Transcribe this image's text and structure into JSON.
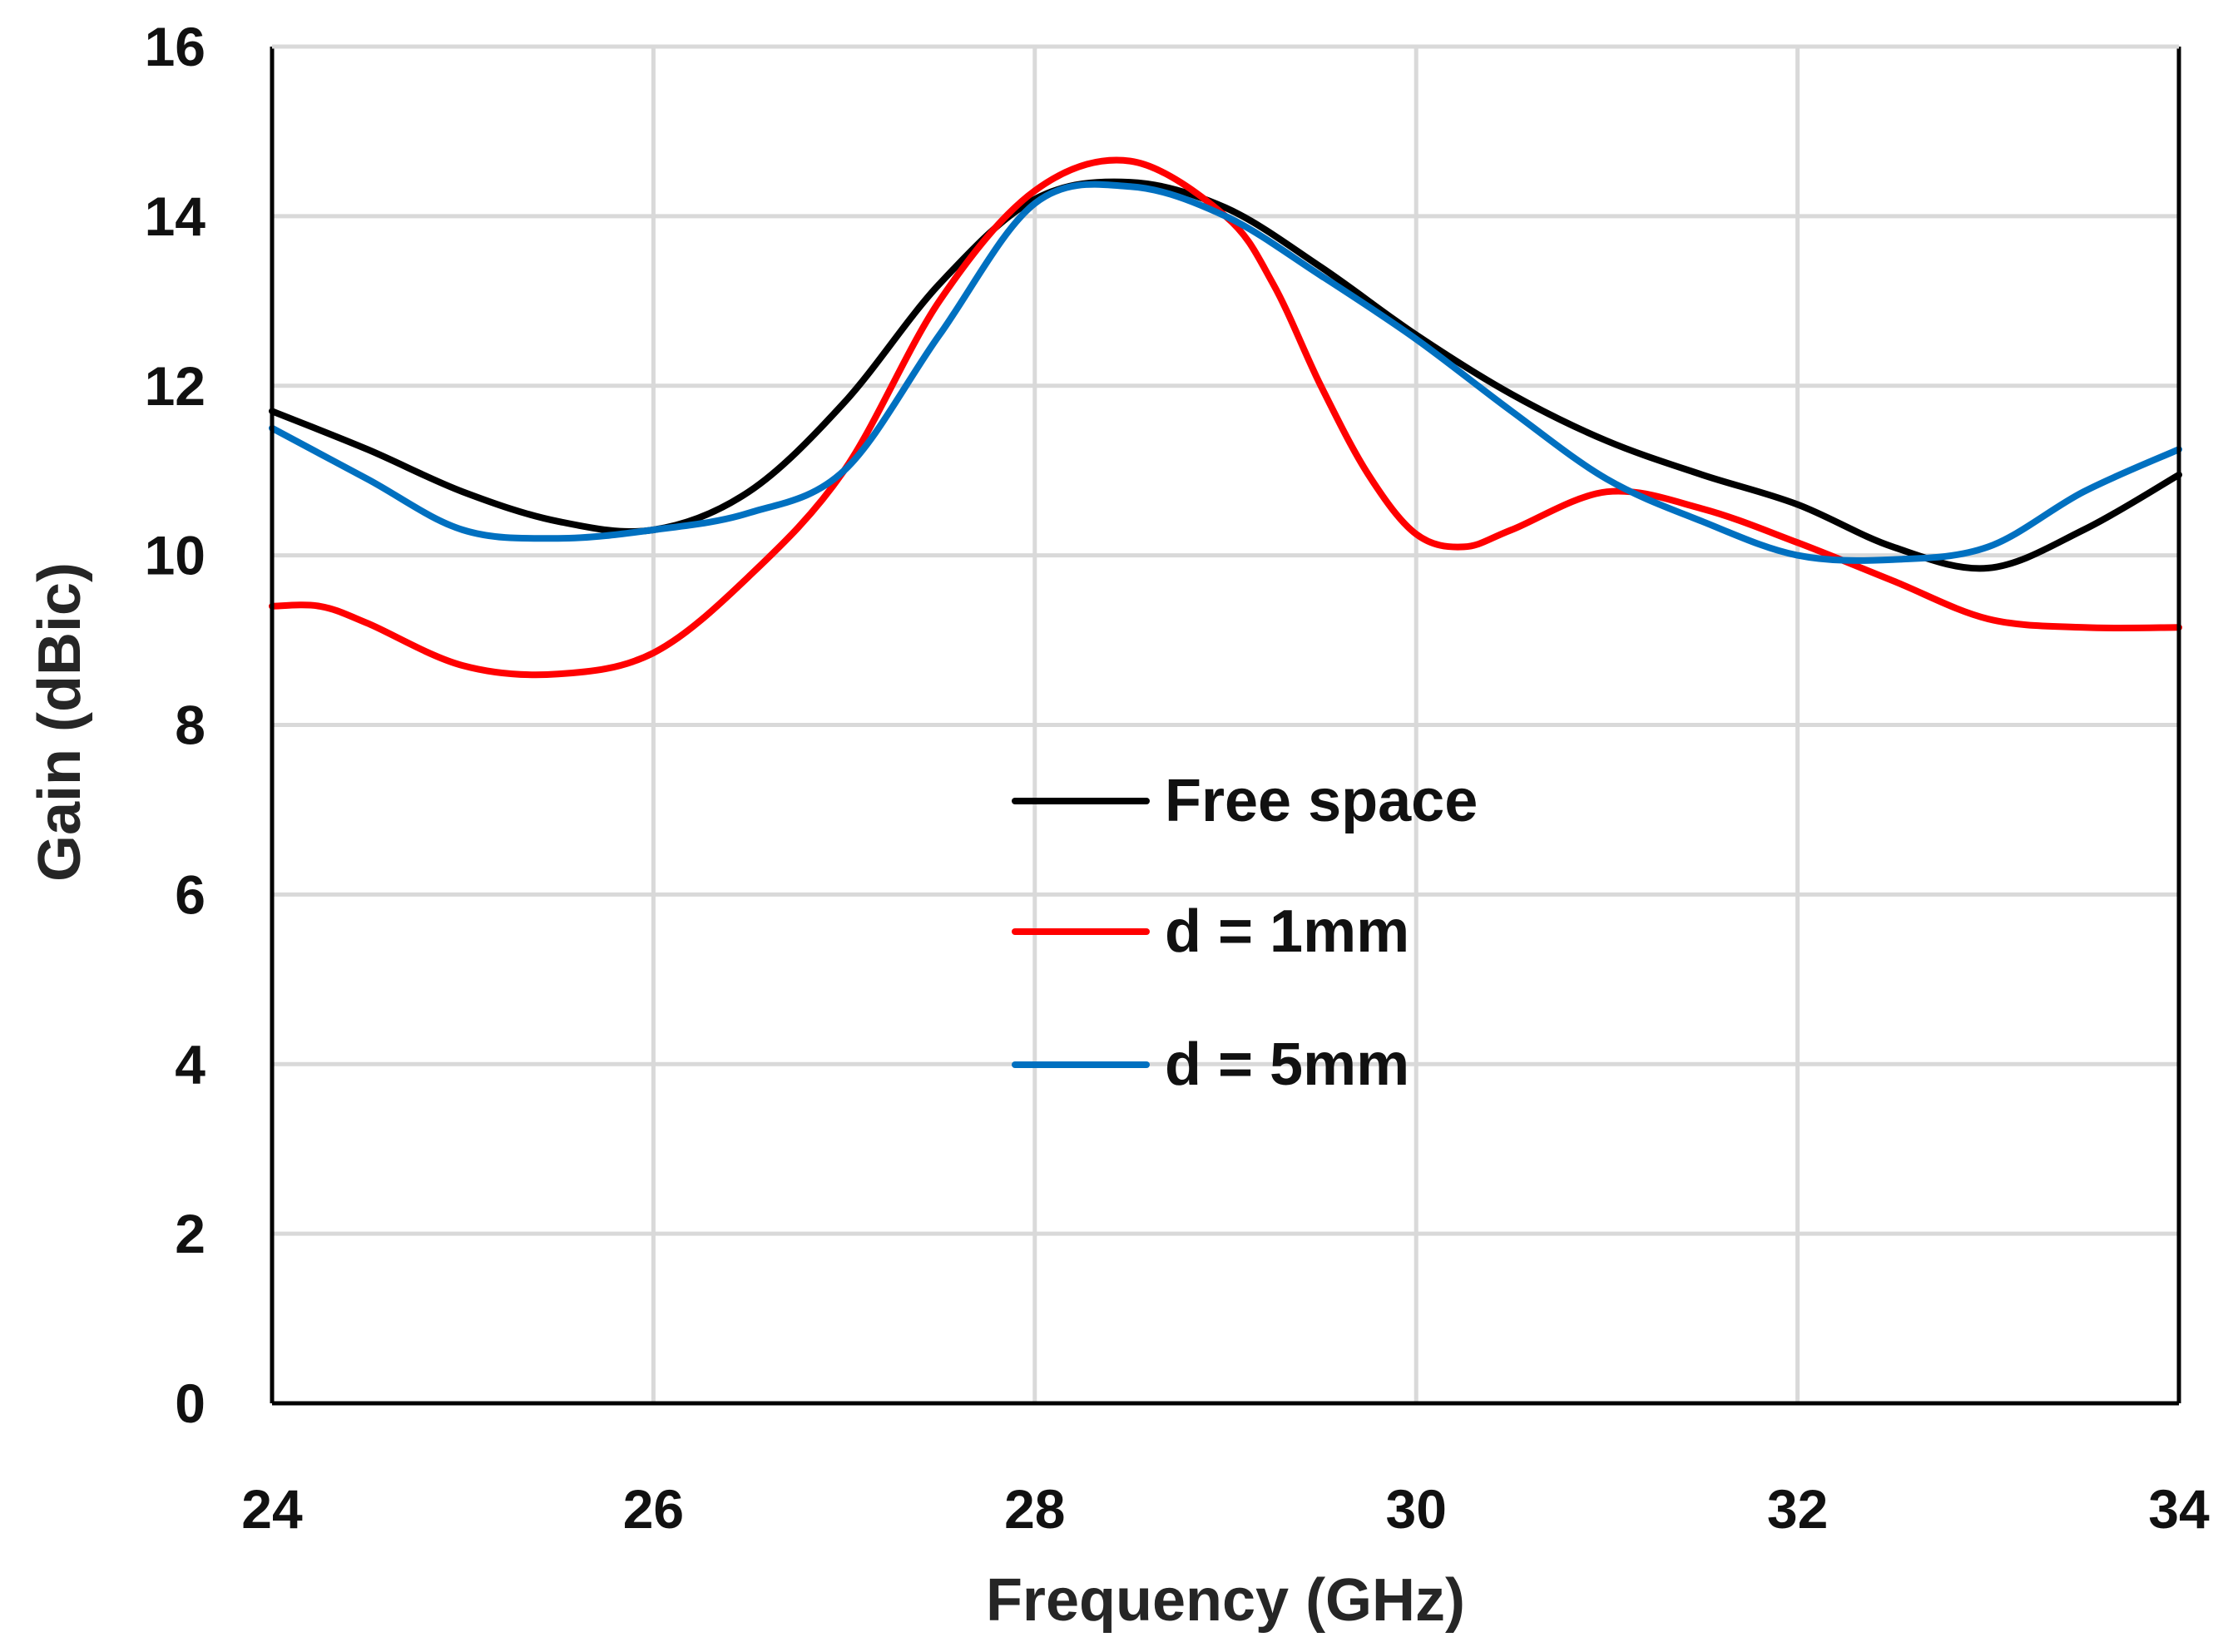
{
  "chart_data": {
    "type": "line",
    "title": "",
    "xlabel": "Frequency (GHz)",
    "ylabel": "Gain (dBic)",
    "xlim": [
      24,
      34
    ],
    "ylim": [
      0,
      16
    ],
    "xticks": [
      24,
      26,
      28,
      30,
      32,
      34
    ],
    "yticks": [
      0,
      2,
      4,
      6,
      8,
      10,
      12,
      14,
      16
    ],
    "grid": true,
    "legend_position": "center",
    "colors": {
      "grid": "#d9d9d9",
      "axis": "#000000"
    },
    "series": [
      {
        "name": "Free space",
        "color": "#000000",
        "x": [
          24,
          24.5,
          25,
          25.5,
          26,
          26.5,
          27,
          27.5,
          28,
          28.5,
          29,
          29.5,
          30,
          30.5,
          31,
          31.5,
          32,
          32.5,
          33,
          33.5,
          34
        ],
        "y": [
          11.7,
          11.25,
          10.75,
          10.4,
          10.3,
          10.75,
          11.8,
          13.2,
          14.2,
          14.4,
          14.1,
          13.4,
          12.6,
          11.9,
          11.35,
          10.95,
          10.6,
          10.1,
          9.85,
          10.3,
          10.95
        ]
      },
      {
        "name": "d = 1mm",
        "color": "#ff0000",
        "x": [
          24,
          24.25,
          24.5,
          25,
          25.5,
          26,
          26.5,
          27,
          27.5,
          28,
          28.5,
          29,
          29.25,
          29.5,
          29.75,
          30,
          30.25,
          30.5,
          31,
          31.5,
          32,
          32.5,
          33,
          33.5,
          34
        ],
        "y": [
          9.4,
          9.4,
          9.2,
          8.7,
          8.6,
          8.85,
          9.75,
          11.0,
          13.0,
          14.3,
          14.65,
          14.0,
          13.2,
          12.0,
          10.95,
          10.25,
          10.1,
          10.3,
          10.75,
          10.55,
          10.15,
          9.7,
          9.25,
          9.15,
          9.15
        ]
      },
      {
        "name": "d = 5mm",
        "color": "#0070c0",
        "x": [
          24,
          24.5,
          25,
          25.5,
          26,
          26.5,
          27,
          27.5,
          28,
          28.5,
          29,
          29.5,
          30,
          30.5,
          31,
          31.5,
          32,
          32.5,
          33,
          33.5,
          34
        ],
        "y": [
          11.5,
          10.9,
          10.3,
          10.2,
          10.3,
          10.5,
          11.0,
          12.6,
          14.15,
          14.35,
          14.0,
          13.3,
          12.55,
          11.7,
          10.9,
          10.4,
          10.0,
          9.95,
          10.1,
          10.75,
          11.25
        ]
      }
    ]
  }
}
